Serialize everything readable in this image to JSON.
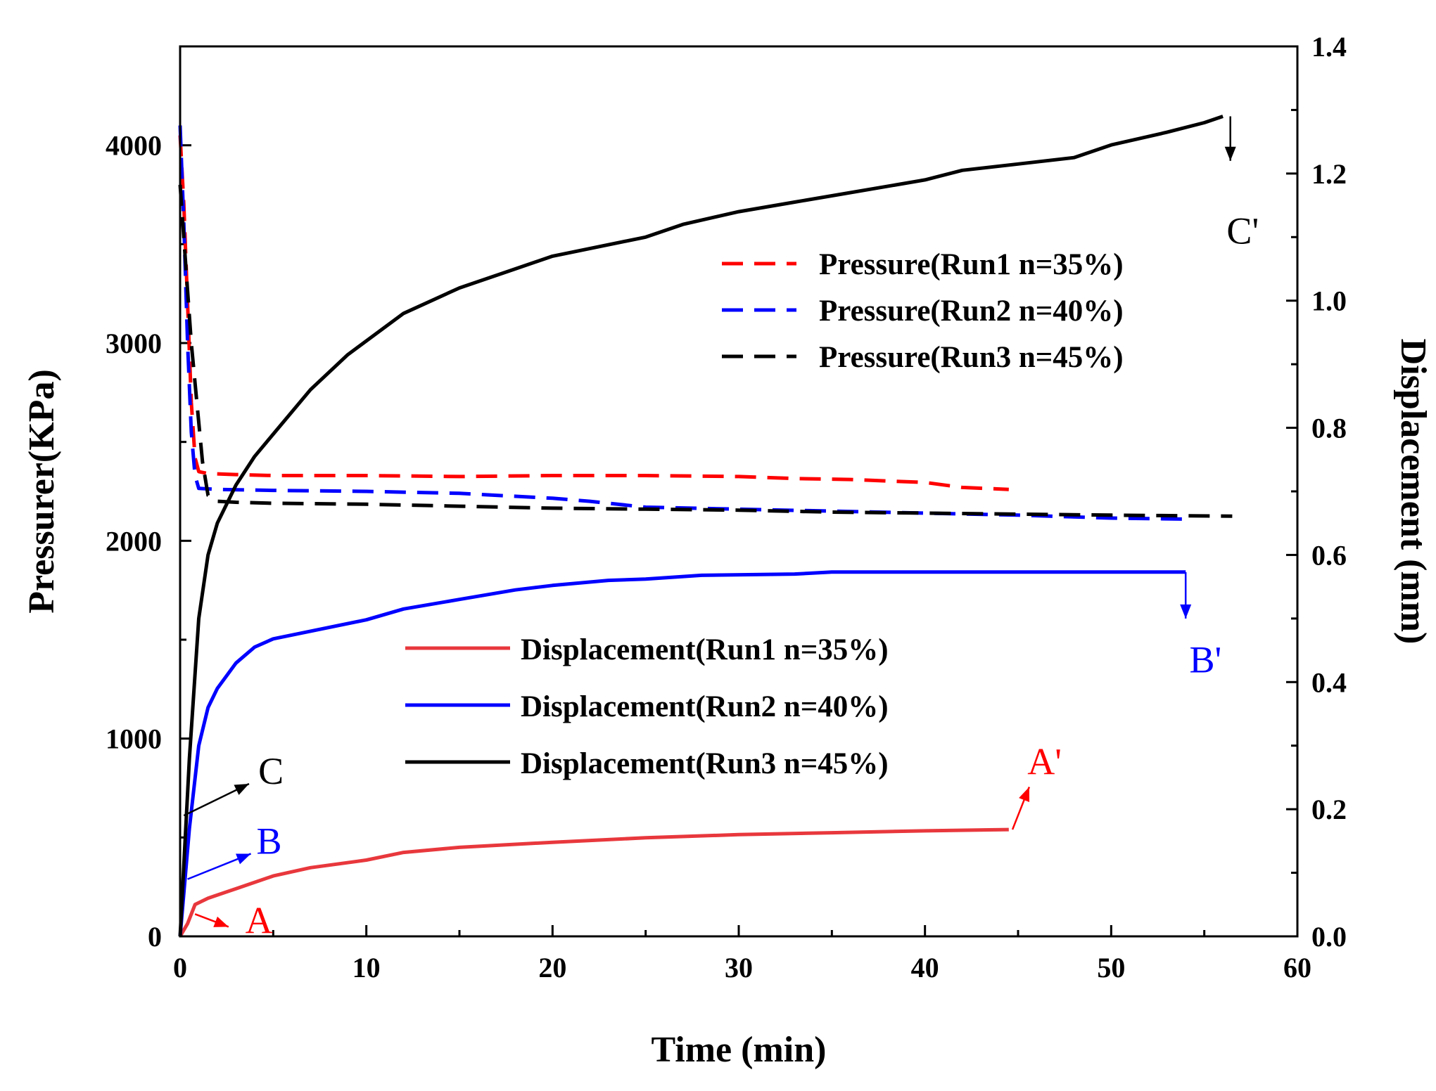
{
  "chart_data": {
    "type": "line",
    "xlabel": "Time (min)",
    "ylabel_left": "Pressurer(KPa)",
    "ylabel_right": "Displacement (mm)",
    "xlim": [
      0,
      60
    ],
    "ylim_left": [
      0,
      4500
    ],
    "ylim_right": [
      0,
      1.4
    ],
    "x_ticks": [
      0,
      10,
      20,
      30,
      40,
      50,
      60
    ],
    "y_left_ticks": [
      0,
      1000,
      2000,
      3000,
      4000
    ],
    "y_right_ticks": [
      0.0,
      0.2,
      0.4,
      0.6,
      0.8,
      1.0,
      1.2,
      1.4
    ],
    "x_tick_labels": [
      "0",
      "10",
      "20",
      "30",
      "40",
      "50",
      "60"
    ],
    "y_left_tick_labels": [
      "0",
      "1000",
      "2000",
      "3000",
      "4000"
    ],
    "y_right_tick_labels": [
      "0.0",
      "0.2",
      "0.4",
      "0.6",
      "0.8",
      "1.0",
      "1.2",
      "1.4"
    ],
    "colors": {
      "run1": "#ff0000",
      "run1_disp": "#e8383d",
      "run2": "#0000ff",
      "run3": "#000000"
    },
    "legend_pressure": [
      "Pressure(Run1 n=35%)",
      "Pressure(Run2 n=40%)",
      "Pressure(Run3 n=45%)"
    ],
    "legend_displacement": [
      "Displacement(Run1 n=35%)",
      "Displacement(Run2 n=40%)",
      "Displacement(Run3 n=45%)"
    ],
    "series": [
      {
        "name": "Pressure(Run1 n=35%)",
        "axis": "left",
        "style": "dashed",
        "color": "#ff0000",
        "x": [
          0,
          0.2,
          0.4,
          0.6,
          0.8,
          1.0,
          1.5,
          3,
          5,
          10,
          15,
          20,
          25,
          30,
          33,
          36,
          40,
          42,
          44.5
        ],
        "y": [
          4050,
          3700,
          3200,
          2700,
          2420,
          2350,
          2340,
          2335,
          2330,
          2330,
          2325,
          2330,
          2330,
          2325,
          2315,
          2310,
          2295,
          2270,
          2260
        ]
      },
      {
        "name": "Pressure(Run2 n=40%)",
        "axis": "left",
        "style": "dashed",
        "color": "#0000ff",
        "x": [
          0,
          0.2,
          0.4,
          0.6,
          0.8,
          1.0,
          2,
          5,
          10,
          15,
          20,
          22,
          25,
          30,
          35,
          40,
          45,
          50,
          54
        ],
        "y": [
          4100,
          3600,
          3000,
          2550,
          2330,
          2265,
          2260,
          2255,
          2250,
          2240,
          2215,
          2200,
          2170,
          2160,
          2150,
          2140,
          2130,
          2115,
          2110
        ]
      },
      {
        "name": "Pressure(Run3 n=45%)",
        "axis": "left",
        "style": "dashed",
        "color": "#000000",
        "x": [
          0,
          0.3,
          0.6,
          0.9,
          1.2,
          1.5,
          2,
          3,
          5,
          10,
          15,
          20,
          25,
          30,
          35,
          40,
          45,
          50,
          56.5
        ],
        "y": [
          3800,
          3400,
          3000,
          2700,
          2400,
          2230,
          2200,
          2195,
          2190,
          2185,
          2175,
          2165,
          2160,
          2155,
          2145,
          2140,
          2135,
          2130,
          2125
        ]
      },
      {
        "name": "Displacement(Run1 n=35%)",
        "axis": "right",
        "style": "solid",
        "color": "#e8383d",
        "x": [
          0,
          0.4,
          0.8,
          1.5,
          3,
          5,
          7,
          10,
          12,
          15,
          20,
          25,
          30,
          35,
          40,
          44.5
        ],
        "y": [
          0,
          0.02,
          0.05,
          0.06,
          0.075,
          0.095,
          0.108,
          0.12,
          0.132,
          0.14,
          0.148,
          0.155,
          0.16,
          0.163,
          0.166,
          0.168
        ]
      },
      {
        "name": "Displacement(Run2 n=40%)",
        "axis": "right",
        "style": "solid",
        "color": "#0000ff",
        "x": [
          0,
          0.5,
          1,
          1.5,
          2,
          3,
          4,
          5,
          7,
          10,
          12,
          15,
          18,
          20,
          23,
          25,
          28,
          33,
          35,
          40,
          45,
          50,
          54
        ],
        "y": [
          0,
          0.17,
          0.3,
          0.36,
          0.39,
          0.43,
          0.455,
          0.468,
          0.48,
          0.498,
          0.515,
          0.53,
          0.545,
          0.552,
          0.56,
          0.562,
          0.568,
          0.57,
          0.573,
          0.573,
          0.573,
          0.573,
          0.573
        ]
      },
      {
        "name": "Displacement(Run3 n=45%)",
        "axis": "right",
        "style": "solid",
        "color": "#000000",
        "x": [
          0,
          0.5,
          1,
          1.5,
          2,
          3,
          4,
          5,
          7,
          9,
          12,
          15,
          18,
          20,
          25,
          27,
          30,
          33,
          35,
          40,
          42,
          45,
          48,
          50,
          53,
          55,
          56
        ],
        "y": [
          0,
          0.28,
          0.5,
          0.6,
          0.65,
          0.71,
          0.755,
          0.79,
          0.86,
          0.915,
          0.98,
          1.02,
          1.05,
          1.07,
          1.1,
          1.12,
          1.14,
          1.155,
          1.165,
          1.19,
          1.205,
          1.215,
          1.225,
          1.245,
          1.265,
          1.28,
          1.29
        ]
      }
    ],
    "annotations": [
      {
        "text": "A",
        "color": "#ff0000",
        "label_x": 3.5,
        "label_y": 0.005,
        "arrow_from": [
          0.8,
          0.035
        ],
        "arrow_to": [
          2.6,
          0.015
        ]
      },
      {
        "text": "B",
        "color": "#0000ff",
        "label_x": 4.1,
        "label_y": 0.13,
        "arrow_from": [
          0.4,
          0.09
        ],
        "arrow_to": [
          3.8,
          0.13
        ]
      },
      {
        "text": "C",
        "color": "#000000",
        "label_x": 4.2,
        "label_y": 0.24,
        "arrow_from": [
          0.2,
          0.19
        ],
        "arrow_to": [
          3.7,
          0.24
        ]
      },
      {
        "text": "A'",
        "color": "#ff0000",
        "label_x": 45.5,
        "label_y": 0.255,
        "arrow_from": [
          44.7,
          0.168
        ],
        "arrow_to": [
          45.6,
          0.235
        ]
      },
      {
        "text": "B'",
        "color": "#0000ff",
        "label_x": 54.2,
        "label_y": 0.415,
        "arrow_from": [
          54,
          0.573
        ],
        "arrow_to": [
          54,
          0.5
        ]
      },
      {
        "text": "C'",
        "color": "#000000",
        "label_x": 56.2,
        "label_y": 1.09,
        "arrow_from": [
          56.4,
          1.29
        ],
        "arrow_to": [
          56.4,
          1.22
        ]
      }
    ]
  }
}
